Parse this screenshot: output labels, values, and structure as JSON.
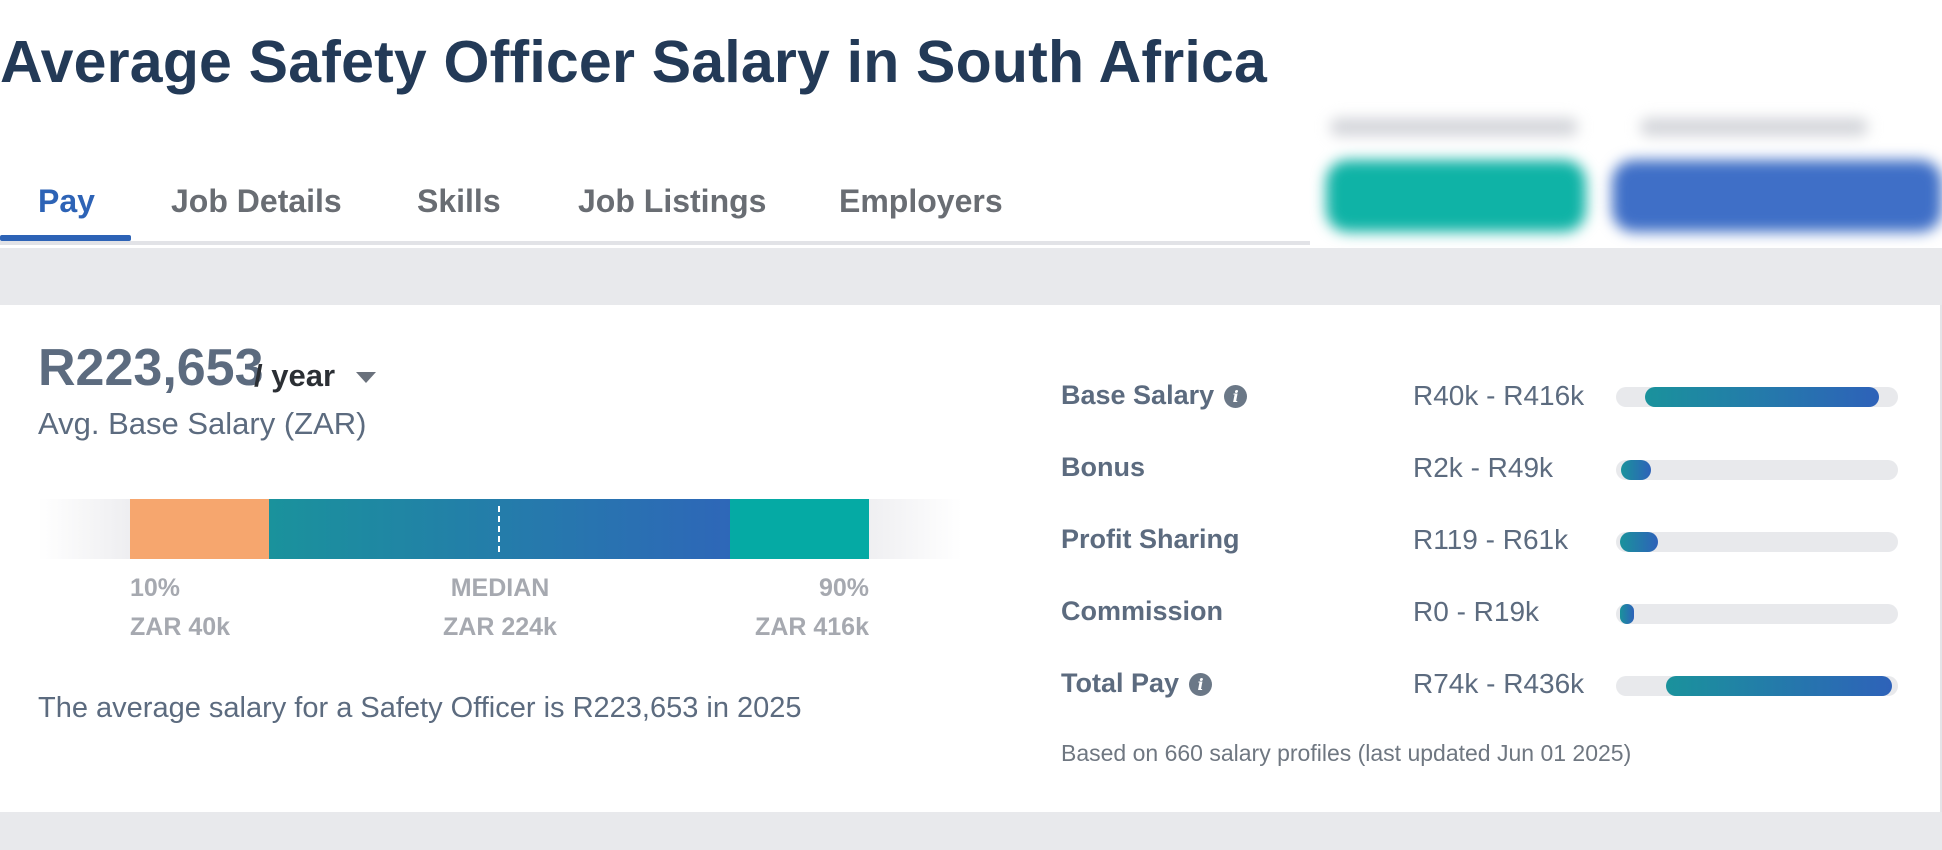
{
  "page_title": "Average Safety Officer Salary in South Africa",
  "tabs": [
    {
      "label": "Pay",
      "active": true
    },
    {
      "label": "Job Details",
      "active": false
    },
    {
      "label": "Skills",
      "active": false
    },
    {
      "label": "Job Listings",
      "active": false
    },
    {
      "label": "Employers",
      "active": false
    }
  ],
  "colors": {
    "title": "#233a57",
    "active_tab": "#2d63b6",
    "percentile_low": "#f6a66e",
    "percentile_mid_start": "#1a929c",
    "percentile_mid_end": "#2e67b8",
    "percentile_high": "#05aaa4",
    "cta_teal": "#0fb3a6",
    "cta_blue": "#3f6fc7"
  },
  "summary_card": {
    "avg_value": "R223,653",
    "period": "/ year",
    "avg_label": "Avg. Base Salary (ZAR)",
    "percentiles": {
      "p10_label": "10%",
      "p10_value": "ZAR 40k",
      "median_label": "MEDIAN",
      "median_value": "ZAR 224k",
      "p90_label": "90%",
      "p90_value": "ZAR 416k"
    },
    "summary_text": "The average salary for a Safety Officer is R223,653 in 2025"
  },
  "compensation": {
    "scale_max": 440000,
    "items": [
      {
        "label": "Base Salary",
        "has_info_icon": true,
        "range": "R40k - R416k",
        "min": 40000,
        "max": 416000
      },
      {
        "label": "Bonus",
        "has_info_icon": false,
        "range": "R2k - R49k",
        "min": 2000,
        "max": 49000
      },
      {
        "label": "Profit Sharing",
        "has_info_icon": false,
        "range": "R119 - R61k",
        "min": 119,
        "max": 61000
      },
      {
        "label": "Commission",
        "has_info_icon": false,
        "range": "R0 - R19k",
        "min": 0,
        "max": 19000
      },
      {
        "label": "Total Pay",
        "has_info_icon": true,
        "range": "R74k - R436k",
        "min": 74000,
        "max": 436000
      }
    ],
    "footnote": "Based on 660 salary profiles (last updated Jun 01 2025)"
  }
}
